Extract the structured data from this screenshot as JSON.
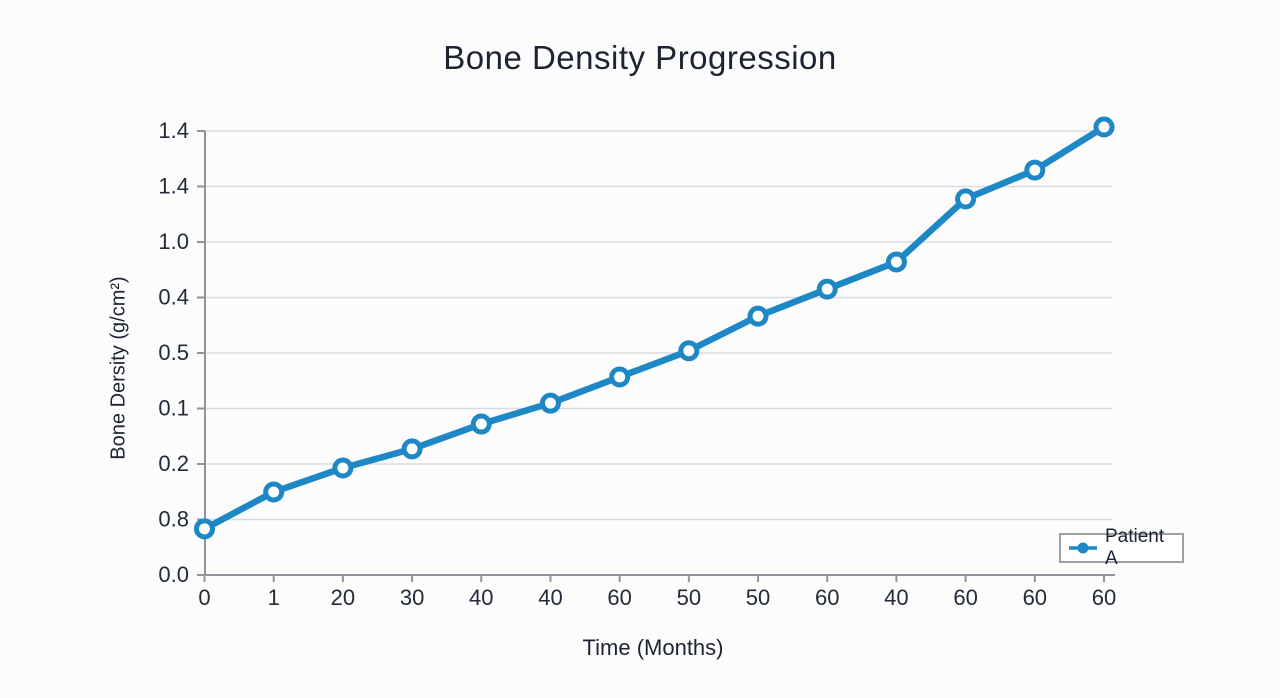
{
  "chart": {
    "title": "Bone Density Progression",
    "x_axis_label": "Time (Months)",
    "y_axis_label": "Bone Dersity (g/cm²)",
    "legend": {
      "label": "Patient A"
    },
    "colors": {
      "line": "#1e87c6",
      "marker_fill": "#ffffff",
      "grid": "#d8dce2",
      "axis": "#8e959d",
      "tick_text": "#222b38",
      "title_text": "#1c2432",
      "background": "#fcfcfc",
      "legend_border": "#9ba1a7"
    }
  },
  "chart_data": {
    "type": "line",
    "title": "Bone Density Progression",
    "xlabel": "Time (Months)",
    "ylabel": "Bone Dersity (g/cm²)",
    "grid": "horizontal-only",
    "legend_entries": [
      "Patient A"
    ],
    "legend_position": "lower right",
    "x_tick_labels": [
      "0",
      "1",
      "20",
      "30",
      "40",
      "40",
      "60",
      "50",
      "50",
      "60",
      "40",
      "60",
      "60",
      "60"
    ],
    "y_tick_labels_top_to_bottom": [
      "1.4",
      "1.4",
      "1.0",
      "0.4",
      "0.5",
      "0.1",
      "0.2",
      "0.8",
      "0.0"
    ],
    "series": [
      {
        "name": "Patient A",
        "marker": "open-circle",
        "x_tick_index": [
          0,
          1,
          2,
          3,
          4,
          5,
          6,
          7,
          8,
          9,
          10,
          11,
          12,
          13
        ],
        "y_frac_of_axis_height": [
          0.104,
          0.187,
          0.241,
          0.284,
          0.34,
          0.387,
          0.446,
          0.505,
          0.583,
          0.644,
          0.705,
          0.847,
          0.912,
          1.009
        ],
        "note": "y given as fraction of plotted axis height above baseline; axis tick labels in source image are non-monotonic"
      }
    ]
  }
}
